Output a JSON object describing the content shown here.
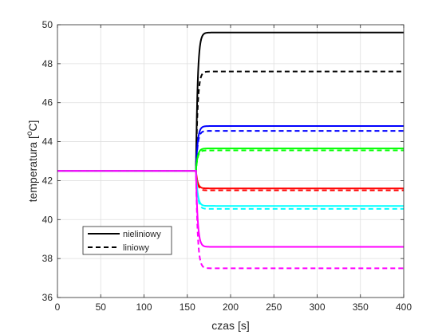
{
  "chart_data": {
    "type": "line",
    "title": "",
    "xlabel": "czas [s]",
    "ylabel_main": "temperatura [",
    "ylabel_sup": "o",
    "ylabel_tail": "C]",
    "xlim": [
      0,
      400
    ],
    "ylim": [
      36,
      50
    ],
    "xticks": [
      0,
      50,
      100,
      150,
      200,
      250,
      300,
      350,
      400
    ],
    "yticks": [
      36,
      38,
      40,
      42,
      44,
      46,
      48,
      50
    ],
    "grid": true,
    "legend": {
      "placement": "bottom-left",
      "entries": [
        {
          "label": "nieliniowy",
          "style": "solid"
        },
        {
          "label": "liniowy",
          "style": "dashed"
        }
      ]
    },
    "initial_value": 42.5,
    "step_time": 160,
    "series": [
      {
        "color": "#000000",
        "style": "solid",
        "final": 49.6,
        "tau": 2.0
      },
      {
        "color": "#000000",
        "style": "dashed",
        "final": 47.6,
        "tau": 2.0
      },
      {
        "color": "#0000ff",
        "style": "solid",
        "final": 44.8,
        "tau": 2.0
      },
      {
        "color": "#0000ff",
        "style": "dashed",
        "final": 44.55,
        "tau": 2.0
      },
      {
        "color": "#00ff00",
        "style": "solid",
        "final": 43.65,
        "tau": 2.0
      },
      {
        "color": "#00ff00",
        "style": "dashed",
        "final": 43.55,
        "tau": 2.0
      },
      {
        "color": "#ff0000",
        "style": "solid",
        "final": 41.6,
        "tau": 2.0
      },
      {
        "color": "#ff0000",
        "style": "dashed",
        "final": 41.5,
        "tau": 2.0
      },
      {
        "color": "#00ffff",
        "style": "solid",
        "final": 40.7,
        "tau": 2.0
      },
      {
        "color": "#00ffff",
        "style": "dashed",
        "final": 40.55,
        "tau": 2.0
      },
      {
        "color": "#ff00ff",
        "style": "solid",
        "final": 38.6,
        "tau": 2.0
      },
      {
        "color": "#ff00ff",
        "style": "dashed",
        "final": 37.5,
        "tau": 2.0
      }
    ]
  }
}
